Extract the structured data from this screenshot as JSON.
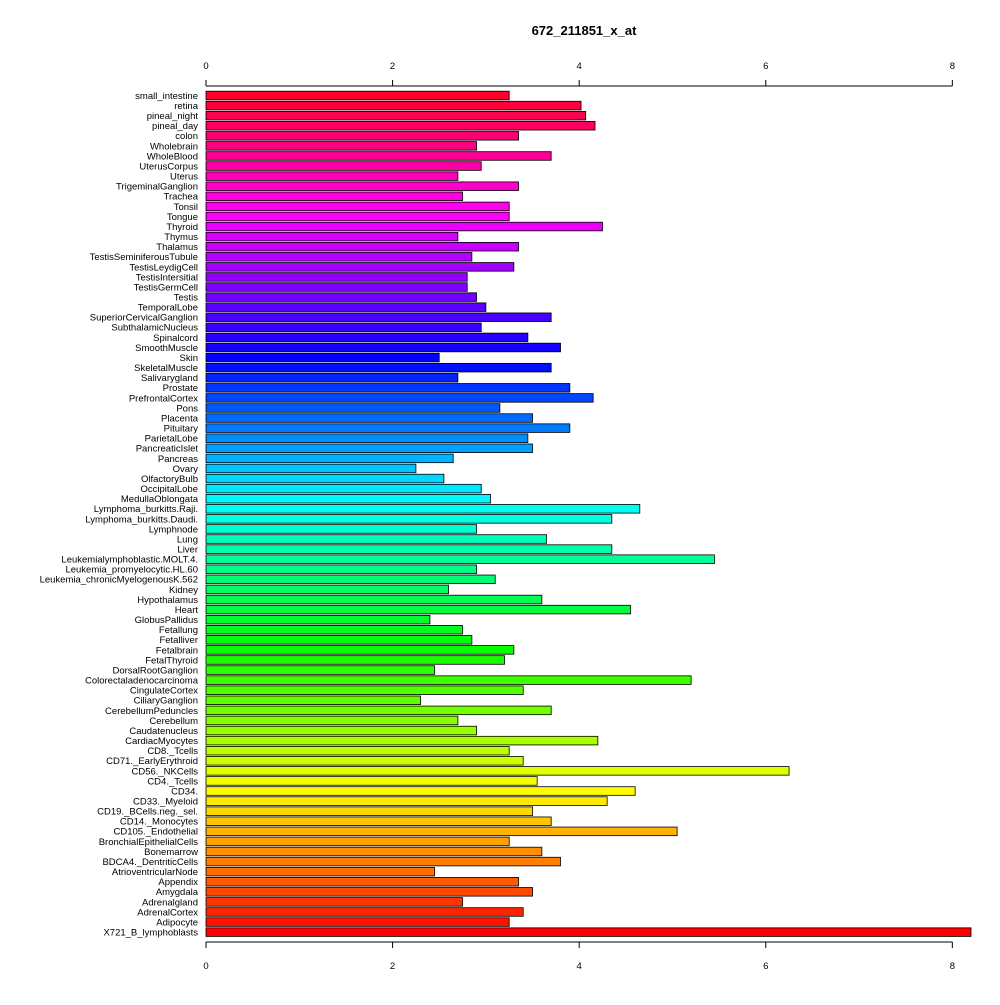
{
  "chart_data": {
    "type": "bar",
    "orientation": "horizontal",
    "title": "672_211851_x_at",
    "xlabel": "",
    "ylabel": "",
    "xlim": [
      0,
      8.2
    ],
    "xticks": [
      0,
      2,
      4,
      6,
      8
    ],
    "xtick_labels": [
      "0",
      "2",
      "4",
      "6",
      "8"
    ],
    "axes": "top-and-bottom",
    "grid": false,
    "legend": "none",
    "bar_colors": "rainbow gradient from red (top) through magenta, blue, cyan, green, yellow, orange to red (bottom)",
    "categories": [
      "small_intestine",
      "retina",
      "pineal_night",
      "pineal_day",
      "colon",
      "Wholebrain",
      "WholeBlood",
      "UterusCorpus",
      "Uterus",
      "TrigeminalGanglion",
      "Trachea",
      "Tonsil",
      "Tongue",
      "Thyroid",
      "Thymus",
      "Thalamus",
      "TestisSeminiferousTubule",
      "TestisLeydigCell",
      "TestisIntersitial",
      "TestisGermCell",
      "Testis",
      "TemporalLobe",
      "SuperiorCervicalGanglion",
      "SubthalamicNucleus",
      "Spinalcord",
      "SmoothMuscle",
      "Skin",
      "SkeletalMuscle",
      "Salivarygland",
      "Prostate",
      "PrefrontalCortex",
      "Pons",
      "Placenta",
      "Pituitary",
      "ParietalLobe",
      "PancreaticIslet",
      "Pancreas",
      "Ovary",
      "OlfactoryBulb",
      "OccipitalLobe",
      "MedullaOblongata",
      "Lymphoma_burkitts.Raji.",
      "Lymphoma_burkitts.Daudi.",
      "Lymphnode",
      "Lung",
      "Liver",
      "Leukemialymphoblastic.MOLT.4.",
      "Leukemia_promyelocytic.HL.60",
      "Leukemia_chronicMyelogenousK.562",
      "Kidney",
      "Hypothalamus",
      "Heart",
      "GlobusPallidus",
      "Fetallung",
      "Fetalliver",
      "Fetalbrain",
      "FetalThyroid",
      "DorsalRootGanglion",
      "Colorectaladenocarcinoma",
      "CingulateCortex",
      "CiliaryGanglion",
      "CerebellumPeduncles",
      "Cerebellum",
      "Caudatenucleus",
      "CardiacMyocytes",
      "CD8._Tcells",
      "CD71._EarlyErythroid",
      "CD56._NKCells",
      "CD4._Tcells",
      "CD34.",
      "CD33._Myeloid",
      "CD19._BCells.neg._sel.",
      "CD14._Monocytes",
      "CD105._Endothelial",
      "BronchialEpithelialCells",
      "Bonemarrow",
      "BDCA4._DentriticCells",
      "AtrioventricularNode",
      "Appendix",
      "Amygdala",
      "Adrenalgland",
      "AdrenalCortex",
      "Adipocyte",
      "X721_B_lymphoblasts"
    ],
    "values": [
      3.25,
      4.02,
      4.07,
      4.17,
      3.35,
      2.9,
      3.7,
      2.95,
      2.7,
      3.35,
      2.75,
      3.25,
      3.25,
      4.25,
      2.7,
      3.35,
      2.85,
      3.3,
      2.8,
      2.8,
      2.9,
      3.0,
      3.7,
      2.95,
      3.45,
      3.8,
      2.5,
      3.7,
      2.7,
      3.9,
      4.15,
      3.15,
      3.5,
      3.9,
      3.45,
      3.5,
      2.65,
      2.25,
      2.55,
      2.95,
      3.05,
      4.65,
      4.35,
      2.9,
      3.65,
      4.35,
      5.45,
      2.9,
      3.1,
      2.6,
      3.6,
      4.55,
      2.4,
      2.75,
      2.85,
      3.3,
      3.2,
      2.45,
      5.2,
      3.4,
      2.3,
      3.7,
      2.7,
      2.9,
      4.2,
      3.25,
      3.4,
      6.25,
      3.55,
      4.6,
      4.3,
      3.5,
      3.7,
      5.05,
      3.25,
      3.6,
      3.8,
      2.45,
      3.35,
      3.5,
      2.75,
      3.4,
      3.25,
      8.2
    ]
  }
}
